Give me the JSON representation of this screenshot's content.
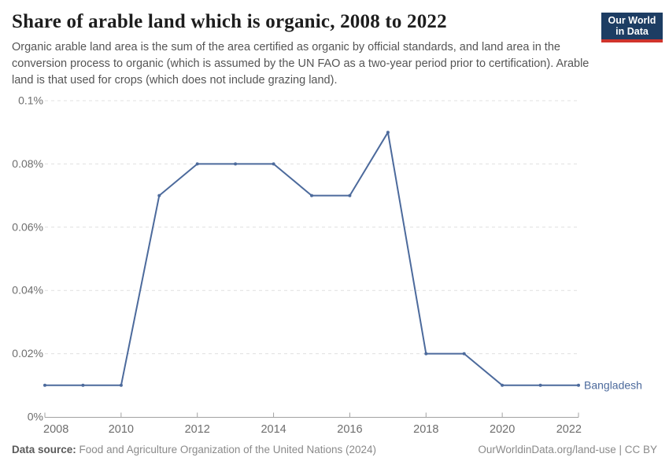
{
  "header": {
    "title": "Share of arable land which is organic, 2008 to 2022",
    "subtitle": "Organic arable land area is the sum of the area certified as organic by official standards, and land area in the conversion process to organic (which is assumed by the UN FAO as a two-year period prior to certification). Arable land is that used for crops (which does not include grazing land)."
  },
  "logo": {
    "line1": "Our World",
    "line2": "in Data",
    "bg_color": "#1d3d63",
    "stripe_color": "#d0342c"
  },
  "chart_data": {
    "type": "line",
    "title": "Share of arable land which is organic, 2008 to 2022",
    "unit": "%",
    "x": [
      2008,
      2009,
      2010,
      2011,
      2012,
      2013,
      2014,
      2015,
      2016,
      2017,
      2018,
      2019,
      2020,
      2021,
      2022
    ],
    "series": [
      {
        "name": "Bangladesh",
        "color": "#4C6A9C",
        "values": [
          0.01,
          0.01,
          0.01,
          0.07,
          0.08,
          0.08,
          0.08,
          0.07,
          0.07,
          0.09,
          0.02,
          0.02,
          0.01,
          0.01,
          0.01
        ]
      }
    ],
    "ylim": [
      0,
      0.1
    ],
    "y_ticks": [
      {
        "value": 0,
        "label": "0%"
      },
      {
        "value": 0.02,
        "label": "0.02%"
      },
      {
        "value": 0.04,
        "label": "0.04%"
      },
      {
        "value": 0.06,
        "label": "0.06%"
      },
      {
        "value": 0.08,
        "label": "0.08%"
      },
      {
        "value": 0.1,
        "label": "0.1%"
      }
    ],
    "x_ticks": [
      {
        "value": 2008,
        "label": "2008"
      },
      {
        "value": 2010,
        "label": "2010"
      },
      {
        "value": 2012,
        "label": "2012"
      },
      {
        "value": 2014,
        "label": "2014"
      },
      {
        "value": 2016,
        "label": "2016"
      },
      {
        "value": 2018,
        "label": "2018"
      },
      {
        "value": 2020,
        "label": "2020"
      },
      {
        "value": 2022,
        "label": "2022"
      }
    ],
    "grid": "horizontal dashed",
    "legend": "series label at right end of line",
    "marker": "dot"
  },
  "footer": {
    "source_label": "Data source:",
    "source_text": "Food and Agriculture Organization of the United Nations (2024)",
    "license": "OurWorldinData.org/land-use | CC BY"
  }
}
